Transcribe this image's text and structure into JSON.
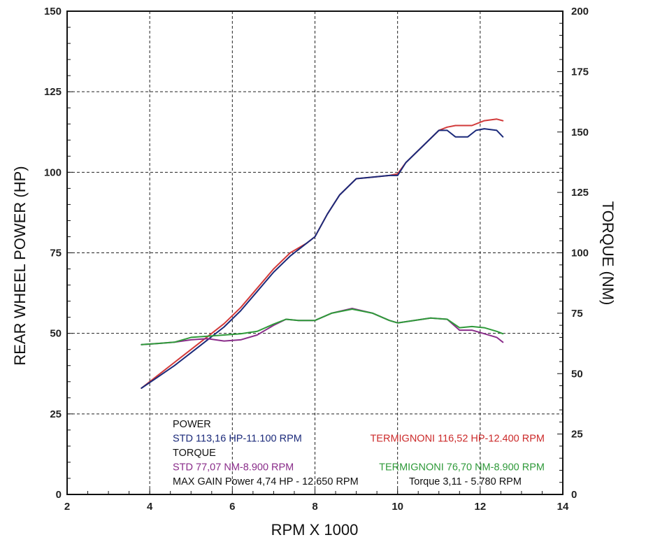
{
  "chart_data": {
    "type": "line",
    "xlabel": "RPM X 1000",
    "ylabel_left": "REAR WHEEL POWER (HP)",
    "ylabel_right": "TORQUE (NM)",
    "x_range": [
      2,
      14
    ],
    "x_ticks": [
      2,
      4,
      6,
      8,
      10,
      12,
      14
    ],
    "y_left_range": [
      0,
      150
    ],
    "y_left_ticks": [
      0,
      25,
      50,
      75,
      100,
      125,
      150
    ],
    "y_right_range": [
      0,
      200
    ],
    "y_right_ticks": [
      0,
      25,
      50,
      75,
      100,
      125,
      150,
      175,
      200
    ],
    "grid": true,
    "series": [
      {
        "axis": "left",
        "color": "#d23a3a",
        "x": [
          3.8,
          4.2,
          4.6,
          5.0,
          5.4,
          5.8,
          6.2,
          6.6,
          7.0,
          7.4,
          7.8,
          8.0,
          8.3,
          8.6,
          9.0,
          9.4,
          9.8,
          10.0,
          10.2,
          10.6,
          11.0,
          11.2,
          11.4,
          11.8,
          12.1,
          12.4,
          12.55
        ],
        "values": [
          33,
          37,
          41,
          45,
          49,
          53,
          58,
          64,
          70,
          75,
          78,
          80,
          87,
          93,
          98,
          98.5,
          99,
          99.5,
          103,
          108,
          113,
          114,
          114.5,
          114.5,
          116,
          116.5,
          116
        ]
      },
      {
        "axis": "left",
        "color": "#1b2a7a",
        "x": [
          3.8,
          4.2,
          4.6,
          5.0,
          5.4,
          5.8,
          6.2,
          6.6,
          7.0,
          7.4,
          7.8,
          8.0,
          8.3,
          8.6,
          9.0,
          9.4,
          9.8,
          10.0,
          10.2,
          10.6,
          11.0,
          11.2,
          11.4,
          11.7,
          11.9,
          12.1,
          12.4,
          12.55
        ],
        "values": [
          33,
          36.5,
          40,
          44,
          48,
          52,
          57,
          63,
          69,
          74,
          78,
          80,
          87,
          93,
          98,
          98.5,
          99,
          99,
          103,
          108,
          113,
          113,
          111,
          111,
          113,
          113.5,
          113,
          111
        ]
      },
      {
        "axis": "right",
        "color": "#8a2d8a",
        "x": [
          3.8,
          4.2,
          4.6,
          5.0,
          5.4,
          5.8,
          6.2,
          6.6,
          7.0,
          7.3,
          7.6,
          8.0,
          8.4,
          8.9,
          9.4,
          9.8,
          10.0,
          10.4,
          10.8,
          11.2,
          11.5,
          11.8,
          12.1,
          12.4,
          12.55
        ],
        "values": [
          62,
          62.5,
          63,
          64,
          64.5,
          63.5,
          64,
          66,
          70,
          72.5,
          72,
          72,
          75,
          77,
          75,
          72,
          71,
          72,
          73,
          72.5,
          68,
          68,
          66.5,
          65,
          63
        ]
      },
      {
        "axis": "right",
        "color": "#2f9a3a",
        "x": [
          3.8,
          4.2,
          4.6,
          5.0,
          5.4,
          5.8,
          6.2,
          6.6,
          7.0,
          7.3,
          7.6,
          8.0,
          8.4,
          8.9,
          9.4,
          9.8,
          10.0,
          10.4,
          10.8,
          11.2,
          11.5,
          11.8,
          12.1,
          12.4,
          12.55
        ],
        "values": [
          62,
          62.5,
          63,
          65,
          65.5,
          66,
          66.5,
          67.5,
          70.5,
          72.5,
          72,
          72,
          75,
          76.7,
          75,
          72,
          71,
          72,
          73,
          72.5,
          69,
          69.5,
          69,
          67.5,
          66.5
        ]
      }
    ],
    "legend_lines": [
      [
        {
          "text": "POWER",
          "color": "#111111"
        }
      ],
      [
        {
          "text": "STD 113,16 HP-11.100 RPM",
          "color": "#1b2a7a"
        },
        {
          "text": "TERMIGNONI 116,52 HP-12.400 RPM",
          "color": "#cc2b2b"
        }
      ],
      [
        {
          "text": "TORQUE",
          "color": "#111111"
        }
      ],
      [
        {
          "text": "STD 77,07 NM-8.900 RPM",
          "color": "#8a2d8a"
        },
        {
          "text": "TERMIGNONI 76,70 NM-8.900 RPM",
          "color": "#2f9a3a"
        }
      ],
      [
        {
          "text": "MAX GAIN Power 4,74 HP - 12.650 RPM",
          "color": "#111111"
        },
        {
          "text": "Torque 3,11 - 5.780 RPM",
          "color": "#111111"
        }
      ]
    ]
  }
}
